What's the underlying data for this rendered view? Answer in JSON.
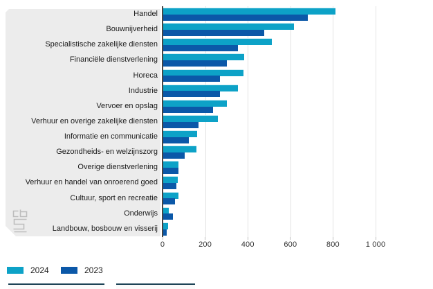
{
  "chart_data": {
    "type": "bar",
    "orientation": "horizontal",
    "title": "",
    "categories": [
      "Handel",
      "Bouwnijverheid",
      "Specialistische zakelijke diensten",
      "Financiële dienstverlening",
      "Horeca",
      "Industrie",
      "Vervoer en opslag",
      "Verhuur en overige zakelijke diensten",
      "Informatie en communicatie",
      "Gezondheids- en welzijnszorg",
      "Overige dienstverlening",
      "Verhuur en handel van onroerend goed",
      "Cultuur, sport en recreatie",
      "Onderwijs",
      "Landbouw, bosbouw en visserij"
    ],
    "series": [
      {
        "name": "2024",
        "color": "#0da2c7",
        "values": [
          810,
          615,
          510,
          380,
          375,
          350,
          300,
          255,
          160,
          155,
          72,
          68,
          70,
          26,
          23
        ]
      },
      {
        "name": "2023",
        "color": "#0b58a8",
        "values": [
          680,
          475,
          350,
          300,
          265,
          265,
          235,
          165,
          120,
          100,
          70,
          62,
          54,
          45,
          16
        ]
      }
    ],
    "xlabel": "",
    "ylabel": "",
    "xlim": [
      0,
      1250
    ],
    "x_ticks": [
      0,
      200,
      400,
      600,
      800,
      1000
    ],
    "x_tick_labels": [
      "0",
      "200",
      "400",
      "600",
      "800",
      "1 000"
    ],
    "grid": "vertical-light",
    "legend_position": "bottom-left"
  },
  "legend": {
    "items": [
      {
        "label": "2024",
        "color": "#0da2c7"
      },
      {
        "label": "2023",
        "color": "#0b58a8"
      }
    ]
  },
  "branding": {
    "logo": "cbs-logo"
  },
  "colors": {
    "panel": "#ececec",
    "axis": "#454545",
    "gridline": "#e3e3e3",
    "bar_2024": "#0da2c7",
    "bar_2023": "#0b58a8",
    "footer_button_border": "#1c4356"
  }
}
